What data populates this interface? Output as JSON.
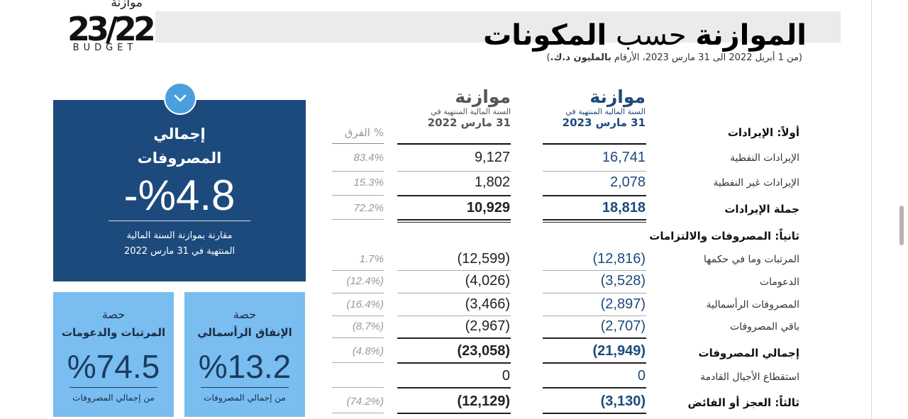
{
  "logo": {
    "arabic": "موازنة",
    "number": "23/22",
    "english": "BUDGET"
  },
  "title": {
    "bold_part1": "الموازنة",
    "light_part": "حسب",
    "bold_part2": "المكونات"
  },
  "subtitle": {
    "prefix": "(من 1 أبريل 2022 الى 31 مارس 2023، الأرقام ",
    "bold": "بالمليون د.ك.",
    "suffix": ")"
  },
  "summary_panel": {
    "icon": "chevron-down-icon",
    "title_line1": "إجمالي",
    "title_line2": "المصروفات",
    "value": "-%4.8",
    "note_line1": "مقارنة بموازنة السنة المالية",
    "note_line2": "المنتهية في 31 مارس 2022",
    "color": "#1d4a7c"
  },
  "share_panels": [
    {
      "heading": "حصة",
      "subject": "المرتبات والدعومات",
      "value": "%74.5",
      "footer": "من إجمالي المصروفات"
    },
    {
      "heading": "حصة",
      "subject": "الإنفاق الرأسمالي",
      "value": "%13.2",
      "footer": "من إجمالي المصروفات"
    }
  ],
  "columns": {
    "budget_2023": {
      "title": "موازنة",
      "sub": "السنة المالية المنتهية في",
      "date": "31 مارس 2023"
    },
    "budget_2022": {
      "title": "موازنة",
      "sub": "السنة المالية المنتهية في",
      "date": "31 مارس 2022"
    },
    "diff": {
      "title": "% الفرق"
    }
  },
  "rows": {
    "revenues_heading": "أولاً: الإيرادات",
    "oil_revenues": {
      "label": "الإيرادات النفطية",
      "v2023": "16,741",
      "v2022": "9,127",
      "diff": "83.4%"
    },
    "nonoil_revenues": {
      "label": "الإيرادات غير النفطية",
      "v2023": "2,078",
      "v2022": "1,802",
      "diff": "15.3%"
    },
    "total_revenues": {
      "label": "جملة الإيرادات",
      "v2023": "18,818",
      "v2022": "10,929",
      "diff": "72.2%"
    },
    "expenses_heading": "ثانياً: المصروفات والالتزامات",
    "salaries": {
      "label": "المرتبات وما في حكمها",
      "v2023": "(12,816)",
      "v2022": "(12,599)",
      "diff": "1.7%"
    },
    "subsidies": {
      "label": "الدعومات",
      "v2023": "(3,528)",
      "v2022": "(4,026)",
      "diff": "(12.4%)"
    },
    "capital": {
      "label": "المصروفات الرأسمالية",
      "v2023": "(2,897)",
      "v2022": "(3,466)",
      "diff": "(16.4%)"
    },
    "other": {
      "label": "باقي المصروفات",
      "v2023": "(2,707)",
      "v2022": "(2,967)",
      "diff": "(8.7%)"
    },
    "total_expenses": {
      "label": "إجمالي المصروفات",
      "v2023": "(21,949)",
      "v2022": "(23,058)",
      "diff": "(4.8%)"
    },
    "future_gen": {
      "label": "استقطاع الأجيال القادمة",
      "v2023": "0",
      "v2022": "0",
      "diff": ""
    },
    "deficit": {
      "label": "ثالثاً: العجز أو الفائض",
      "v2023": "(3,130)",
      "v2022": "(12,129)",
      "diff": "(74.2%)"
    }
  }
}
